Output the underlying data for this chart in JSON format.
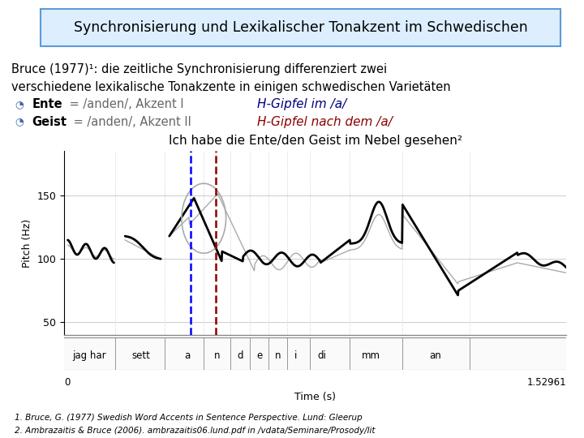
{
  "title": "Synchronisierung und Lexikalischer Tonakzent im Schwedischen",
  "subtitle_line1": "Bruce (1977)¹: die zeitliche Synchronisierung differenziert zwei",
  "subtitle_line2": "verschiedene lexikalische Tonakzente in einigen schwedischen Varietäten",
  "bullet1_bold": "Ente",
  "bullet1_rest": " = /anden/, Akzent I",
  "bullet2_bold": "Geist",
  "bullet2_rest": " = /anden/, Akzent II",
  "bullet1_right": "H-Gipfel im /a/",
  "bullet2_right": "H-Gipfel nach dem /a/",
  "chart_title": "Ich habe die Ente/den Geist im Nebel gesehen²",
  "ylabel": "Pitch (Hz)",
  "xlabel": "Time (s)",
  "ylim": [
    40,
    185
  ],
  "xlim": [
    0,
    1.52961
  ],
  "yticks": [
    50,
    100,
    150
  ],
  "xtick_left": "0",
  "xtick_right": "1.52961",
  "syllable_labels": [
    "jag har",
    "sett",
    "a",
    "n",
    "d",
    "e",
    "n",
    "i",
    "di",
    "mm",
    "an"
  ],
  "syllable_positions": [
    0.075,
    0.235,
    0.375,
    0.465,
    0.535,
    0.595,
    0.65,
    0.705,
    0.785,
    0.935,
    1.13
  ],
  "blue_line_x": 0.385,
  "red_line_x": 0.462,
  "ref1": "1. Bruce, G. (1977) Swedish Word Accents in Sentence Perspective. Lund: Gleerup",
  "ref2": "2. Ambrazaitis & Bruce (2006). ambrazaitis06.lund.pdf in /vdata/Seminare/Prosody/lit",
  "bg_color": "#ffffff",
  "title_box_color": "#ddeeff",
  "title_box_border": "#5b9bd5",
  "right_text_color_1": "#000080",
  "right_text_color_2": "#8b0000",
  "chart_bg": "#ffffff",
  "grid_color": "#cccccc",
  "bullet_icon_color": "#4466aa"
}
